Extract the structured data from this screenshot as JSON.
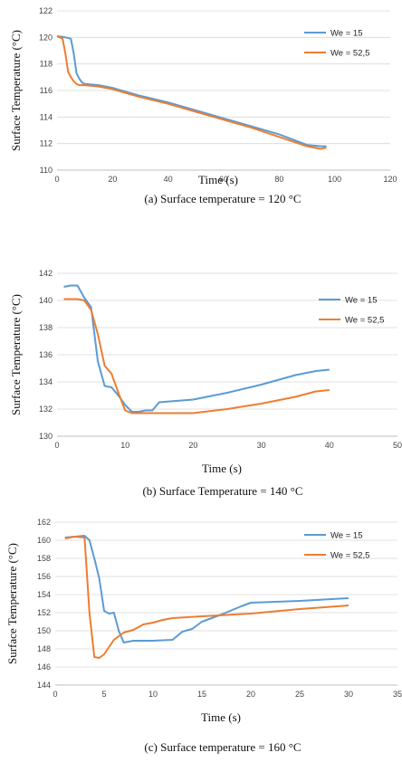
{
  "chart_data": [
    {
      "type": "line",
      "caption": "(a) Surface temperature = 120 °C",
      "xlabel": "Time (s)",
      "ylabel": "Surface Temperature (°C)",
      "xlim": [
        0,
        120
      ],
      "ylim": [
        110,
        122
      ],
      "xticks": [
        0,
        20,
        40,
        60,
        80,
        100,
        120
      ],
      "yticks": [
        110,
        112,
        114,
        116,
        118,
        120,
        122
      ],
      "grid": "horizontal",
      "legend_position": "top-right",
      "series": [
        {
          "name": "We = 15",
          "color": "#5B9BD5",
          "x": [
            0,
            3,
            5,
            6,
            7,
            8,
            9,
            10,
            15,
            20,
            30,
            40,
            50,
            60,
            70,
            80,
            90,
            95,
            97
          ],
          "y": [
            120.1,
            120.0,
            119.9,
            118.8,
            117.3,
            116.9,
            116.6,
            116.5,
            116.4,
            116.2,
            115.6,
            115.1,
            114.5,
            113.9,
            113.3,
            112.7,
            111.9,
            111.8,
            111.8
          ]
        },
        {
          "name": "We = 52,5",
          "color": "#ED7D31",
          "x": [
            0,
            2,
            3,
            4,
            5,
            6,
            7,
            8,
            10,
            15,
            20,
            30,
            40,
            50,
            60,
            70,
            80,
            90,
            95,
            97
          ],
          "y": [
            120.1,
            119.9,
            118.8,
            117.4,
            117.0,
            116.7,
            116.5,
            116.4,
            116.4,
            116.3,
            116.1,
            115.5,
            115.0,
            114.4,
            113.8,
            113.2,
            112.5,
            111.8,
            111.6,
            111.7
          ]
        }
      ]
    },
    {
      "type": "line",
      "caption": "(b) Surface Temperature = 140 °C",
      "xlabel": "Time (s)",
      "ylabel": "Surface Temperature (°C)",
      "xlim": [
        0,
        50
      ],
      "ylim": [
        130,
        142
      ],
      "xticks": [
        0,
        10,
        20,
        30,
        40,
        50
      ],
      "yticks": [
        130,
        132,
        134,
        136,
        138,
        140,
        142
      ],
      "grid": "horizontal",
      "legend_position": "top-right",
      "series": [
        {
          "name": "We = 15",
          "color": "#5B9BD5",
          "x": [
            1,
            2,
            3,
            4,
            5,
            6,
            7,
            8,
            9,
            10,
            11,
            12,
            13,
            14,
            15,
            20,
            25,
            30,
            35,
            38,
            40
          ],
          "y": [
            141.0,
            141.1,
            141.1,
            140.2,
            139.5,
            135.5,
            133.7,
            133.6,
            133.0,
            132.3,
            131.8,
            131.8,
            131.9,
            131.9,
            132.5,
            132.7,
            133.2,
            133.8,
            134.5,
            134.8,
            134.9
          ]
        },
        {
          "name": "We = 52,5",
          "color": "#ED7D31",
          "x": [
            1,
            2,
            3,
            4,
            5,
            6,
            7,
            8,
            9,
            10,
            11,
            12,
            15,
            20,
            25,
            30,
            35,
            38,
            40
          ],
          "y": [
            140.1,
            140.1,
            140.1,
            140.0,
            139.3,
            137.5,
            135.2,
            134.6,
            133.2,
            131.9,
            131.7,
            131.7,
            131.7,
            131.7,
            132.0,
            132.4,
            132.9,
            133.3,
            133.4
          ]
        }
      ]
    },
    {
      "type": "line",
      "caption": "(c) Surface temperature = 160 °C",
      "xlabel": "Time (s)",
      "ylabel": "Surface Temperature (°C)",
      "xlim": [
        0,
        35
      ],
      "ylim": [
        144,
        162
      ],
      "xticks": [
        0,
        5,
        10,
        15,
        20,
        25,
        30,
        35
      ],
      "yticks": [
        144,
        146,
        148,
        150,
        152,
        154,
        156,
        158,
        160,
        162
      ],
      "grid": "horizontal",
      "legend_position": "top-right",
      "series": [
        {
          "name": "We = 15",
          "color": "#5B9BD5",
          "x": [
            1,
            2,
            3,
            3.5,
            4,
            4.5,
            5,
            5.5,
            6,
            6.5,
            7,
            8,
            10,
            12,
            13,
            14,
            15,
            17,
            19,
            20,
            25,
            30
          ],
          "y": [
            160.3,
            160.4,
            160.5,
            160.0,
            158.0,
            155.8,
            152.2,
            151.9,
            152.0,
            150.0,
            148.7,
            148.9,
            148.9,
            149.0,
            149.9,
            150.2,
            151.0,
            151.8,
            152.7,
            153.1,
            153.3,
            153.6
          ]
        },
        {
          "name": "We = 52,5",
          "color": "#ED7D31",
          "x": [
            1,
            2,
            3,
            3.5,
            4,
            4.5,
            5,
            6,
            7,
            8,
            9,
            10,
            11,
            12,
            15,
            20,
            25,
            30
          ],
          "y": [
            160.2,
            160.4,
            160.3,
            152.0,
            147.1,
            147.0,
            147.4,
            149.0,
            149.8,
            150.1,
            150.7,
            150.9,
            151.2,
            151.4,
            151.6,
            151.9,
            152.4,
            152.8
          ]
        }
      ]
    }
  ]
}
